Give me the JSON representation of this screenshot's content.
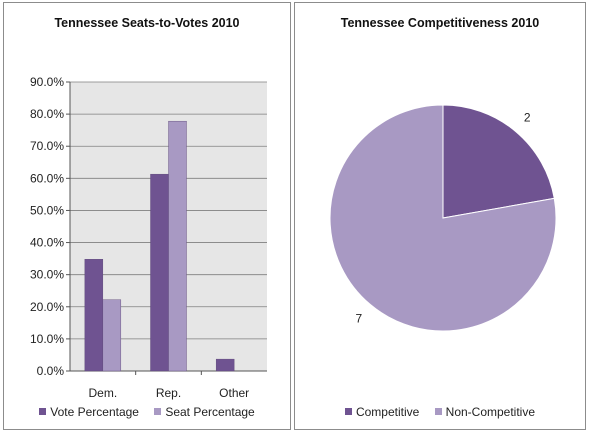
{
  "colors": {
    "series1": "#6f5391",
    "series2": "#a899c3",
    "plot_bg": "#e6e6e6",
    "grid": "#7f7f7f"
  },
  "chart_data": [
    {
      "type": "bar",
      "title": "Tennessee Seats-to-Votes 2010",
      "categories": [
        "Dem.",
        "Rep.",
        "Other"
      ],
      "series": [
        {
          "name": "Vote Percentage",
          "values": [
            34.8,
            61.3,
            3.7
          ]
        },
        {
          "name": "Seat Percentage",
          "values": [
            22.2,
            77.8,
            0
          ]
        }
      ],
      "ylim": [
        0,
        90
      ],
      "yticks": [
        "0.0%",
        "10.0%",
        "20.0%",
        "30.0%",
        "40.0%",
        "50.0%",
        "60.0%",
        "70.0%",
        "80.0%",
        "90.0%"
      ],
      "grid": true,
      "legend": "bottom"
    },
    {
      "type": "pie",
      "title": "Tennessee Competitiveness 2010",
      "categories": [
        "Competitive",
        "Non-Competitive"
      ],
      "values": [
        2,
        7
      ],
      "data_labels": [
        "2",
        "7"
      ],
      "legend": "bottom"
    }
  ]
}
